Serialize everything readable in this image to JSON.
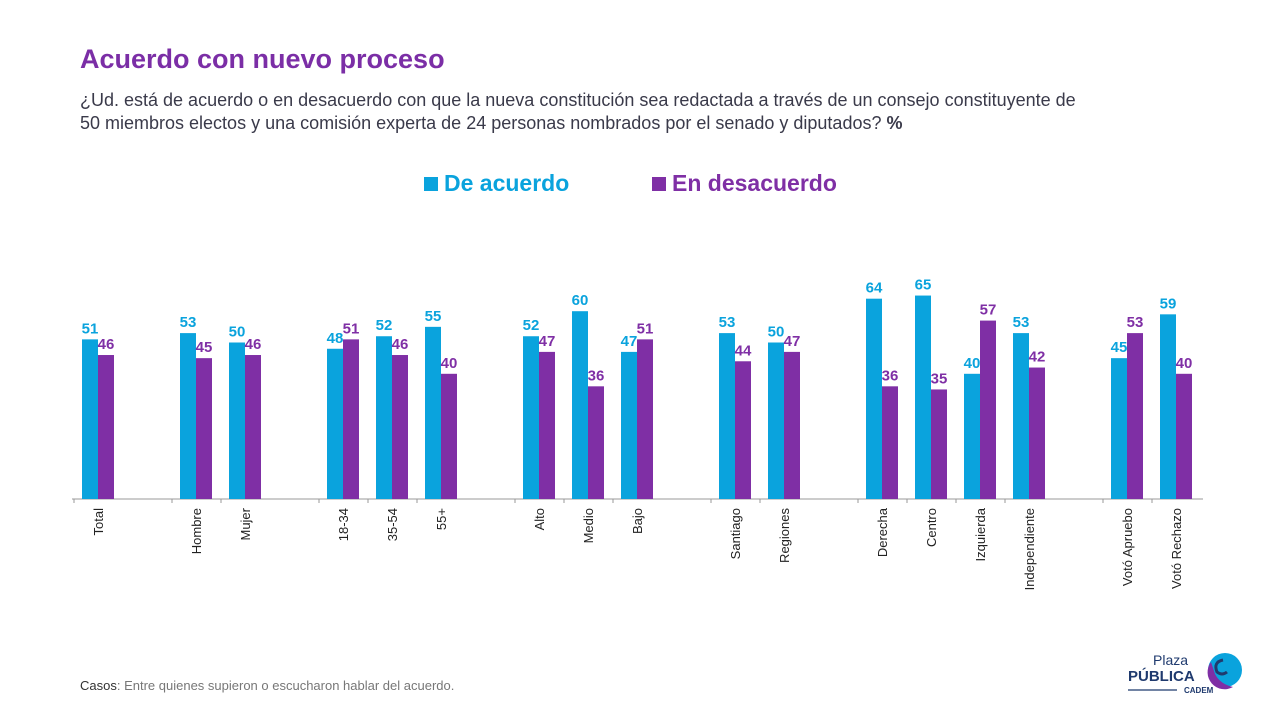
{
  "header": {
    "title": "Acuerdo con nuevo proceso",
    "subtitle": "¿Ud. está de acuerdo o en desacuerdo con que la nueva constitución sea redactada a través de un consejo constituyente de 50 miembros electos y una comisión experta de 24 personas nombrados por el senado y diputados?",
    "subtitle_unit": "%"
  },
  "footer": {
    "casos_label": "Casos",
    "casos_text": ": Entre quienes supieron o escucharon hablar del acuerdo.",
    "logo_text": [
      "Plaza",
      "PÚBLICA",
      "CADEM"
    ]
  },
  "colors": {
    "acuerdo": "#0aa3dd",
    "desacuerdo": "#7f2fa5",
    "title": "#7b2ea6"
  },
  "chart_data": {
    "type": "bar",
    "title": "Acuerdo con nuevo proceso",
    "ylim": [
      0,
      100
    ],
    "legend_position": "top-center",
    "categories": [
      "Total",
      "Hombre",
      "Mujer",
      "18-34",
      "35-54",
      "55+",
      "Alto",
      "Medio",
      "Bajo",
      "Santiago",
      "Regiones",
      "Derecha",
      "Centro",
      "Izquierda",
      "Independiente",
      "Votó Apruebo",
      "Votó Rechazo"
    ],
    "groups": [
      [
        0
      ],
      [
        1,
        2
      ],
      [
        3,
        4,
        5
      ],
      [
        6,
        7,
        8
      ],
      [
        9,
        10
      ],
      [
        11,
        12,
        13,
        14
      ],
      [
        15,
        16
      ]
    ],
    "series": [
      {
        "name": "De acuerdo",
        "values": [
          51,
          53,
          50,
          48,
          52,
          55,
          52,
          60,
          47,
          53,
          50,
          64,
          65,
          40,
          53,
          45,
          59
        ]
      },
      {
        "name": "En desacuerdo",
        "values": [
          46,
          45,
          46,
          51,
          46,
          40,
          47,
          36,
          51,
          44,
          47,
          36,
          35,
          57,
          42,
          53,
          40
        ]
      }
    ]
  }
}
